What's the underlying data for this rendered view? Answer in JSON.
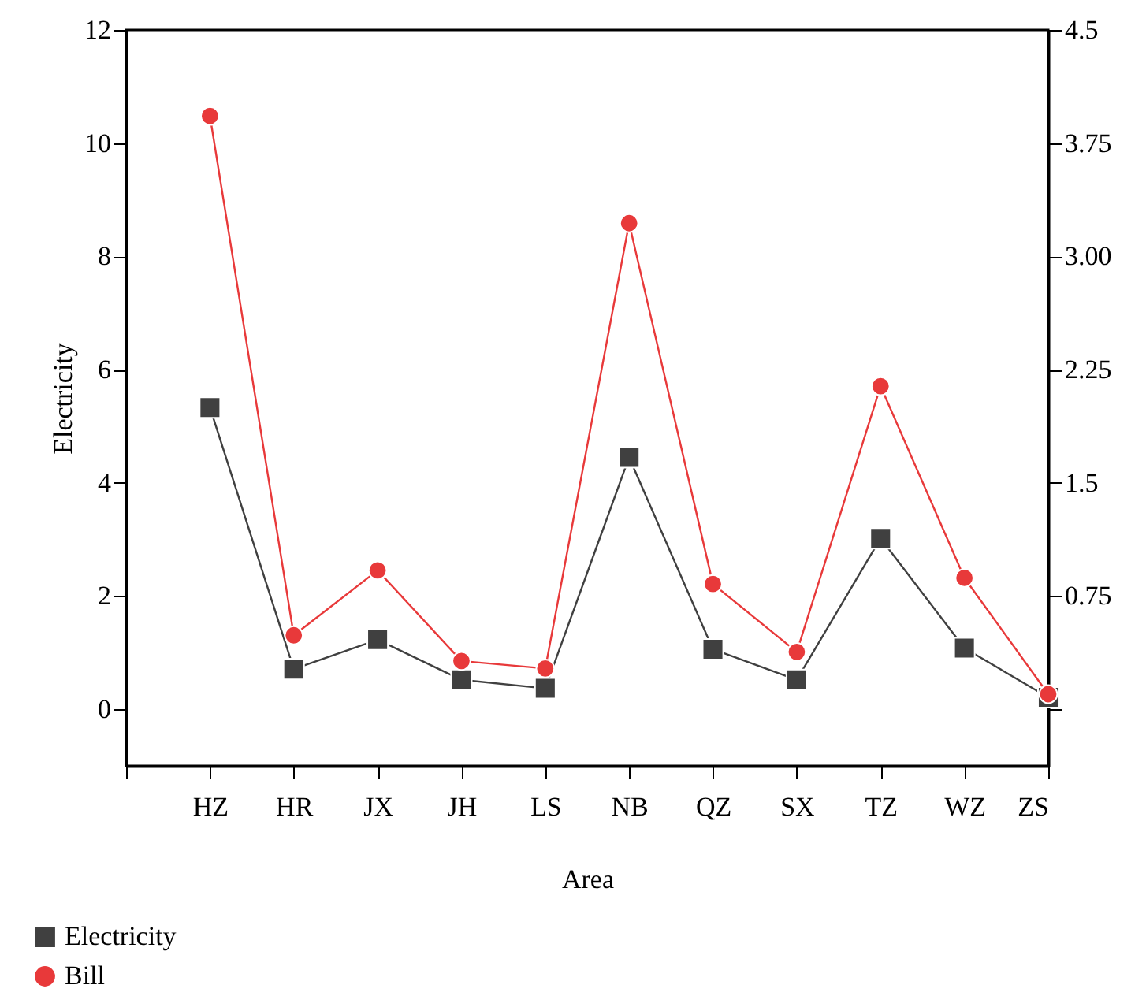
{
  "chart_data": {
    "type": "line",
    "xlabel": "Area",
    "ylabel": "Electricity",
    "categories": [
      null,
      "HZ",
      "HR",
      "JX",
      "JH",
      "LS",
      "NB",
      "QZ",
      "SX",
      "TZ",
      "WZ",
      "ZS"
    ],
    "series": [
      {
        "name": "Electricity",
        "color": "#404040",
        "marker": "square",
        "values": [
          null,
          5.33,
          0.71,
          1.23,
          0.52,
          0.37,
          4.45,
          1.06,
          0.52,
          3.02,
          1.08,
          0.21
        ]
      },
      {
        "name": "Bill",
        "color": "#e8393a",
        "marker": "circle",
        "axis": "y2",
        "values": [
          null,
          3.93,
          0.49,
          0.92,
          0.32,
          0.27,
          3.22,
          0.83,
          0.38,
          2.14,
          0.87,
          0.1
        ]
      }
    ],
    "ylim": [
      -1,
      12
    ],
    "yticks": [
      0,
      2,
      4,
      6,
      8,
      10,
      12
    ],
    "y2lim": [
      -0.375,
      4.5
    ],
    "y2ticks": [
      {
        "value": 0,
        "label": null
      },
      {
        "value": 0.75,
        "label": "0.75"
      },
      {
        "value": 1.5,
        "label": "1.5"
      },
      {
        "value": 2.25,
        "label": "2.25"
      },
      {
        "value": 3,
        "label": "3.00"
      },
      {
        "value": 3.75,
        "label": "3.75"
      },
      {
        "value": 4.5,
        "label": "4.5"
      }
    ],
    "grid": false,
    "legend": "bottom left",
    "line_style": "solid"
  }
}
